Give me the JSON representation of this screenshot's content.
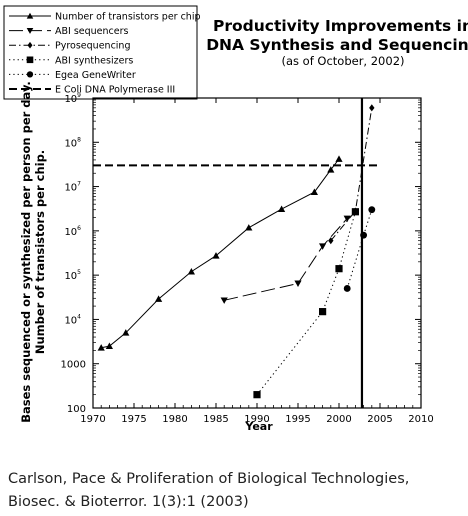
{
  "chart_data": {
    "type": "line",
    "title": "Productivity Improvements in",
    "title_line2": "DNA Synthesis and Sequencing",
    "subtitle": "(as of October, 2002)",
    "xlabel": "Year",
    "ylabel_line1": "Bases sequenced or synthesized per person per day.",
    "ylabel_line2": "Number of transistors per chip.",
    "xlim": [
      1970,
      2010
    ],
    "ylim": [
      100,
      1000000000
    ],
    "yscale": "log",
    "grid": false,
    "legend_position": "top-left",
    "x_ticks": [
      "1970",
      "1975",
      "1980",
      "1985",
      "1990",
      "1995",
      "2000",
      "2005",
      "2010"
    ],
    "y_ticks": [
      {
        "base": "100",
        "exp": ""
      },
      {
        "base": "1000",
        "exp": ""
      },
      {
        "base": "10",
        "exp": "4"
      },
      {
        "base": "10",
        "exp": "5"
      },
      {
        "base": "10",
        "exp": "6"
      },
      {
        "base": "10",
        "exp": "7"
      },
      {
        "base": "10",
        "exp": "8"
      },
      {
        "base": "10",
        "exp": "9"
      }
    ],
    "series": [
      {
        "name": "Number of transistors per chip",
        "marker": "triangle-up",
        "dash": "solid",
        "points": [
          [
            1971,
            2300
          ],
          [
            1972,
            2500
          ],
          [
            1974,
            5000
          ],
          [
            1978,
            29000
          ],
          [
            1982,
            120000
          ],
          [
            1985,
            275000
          ],
          [
            1989,
            1180000
          ],
          [
            1993,
            3100000
          ],
          [
            1997,
            7500000
          ],
          [
            1999,
            24000000
          ],
          [
            2000,
            42000000
          ]
        ]
      },
      {
        "name": "ABI sequencers",
        "marker": "triangle-down",
        "dash": "long-dash",
        "points": [
          [
            1986,
            27000
          ],
          [
            1995,
            65000
          ],
          [
            1998,
            450000
          ],
          [
            2001,
            1900000
          ]
        ]
      },
      {
        "name": "Pyrosequencing",
        "marker": "diamond",
        "dash": "dash-dot",
        "points": [
          [
            1999,
            600000
          ],
          [
            2002,
            2800000
          ],
          [
            2004,
            600000000
          ]
        ]
      },
      {
        "name": "ABI synthesizers",
        "marker": "square",
        "dash": "dotted",
        "points": [
          [
            1990,
            200
          ],
          [
            1998,
            15000
          ],
          [
            2000,
            140000
          ],
          [
            2002,
            2700000
          ]
        ]
      },
      {
        "name": "Egea GeneWriter",
        "marker": "circle",
        "dash": "dotted",
        "points": [
          [
            2001,
            50000
          ],
          [
            2003,
            800000
          ],
          [
            2004,
            3000000
          ]
        ]
      },
      {
        "name": "E Coli DNA Polymerase III",
        "marker": "none",
        "dash": "heavy-dash",
        "points": [
          [
            1970,
            30000000
          ],
          [
            2005,
            30000000
          ]
        ]
      }
    ],
    "reference_lines": [
      {
        "type": "vertical",
        "x": 2002.8,
        "style": "solid-heavy"
      }
    ]
  },
  "caption": {
    "line1": "Carlson, Pace & Proliferation of Biological Technologies,",
    "line2": "Biosec. & Bioterror. 1(3):1 (2003)"
  }
}
